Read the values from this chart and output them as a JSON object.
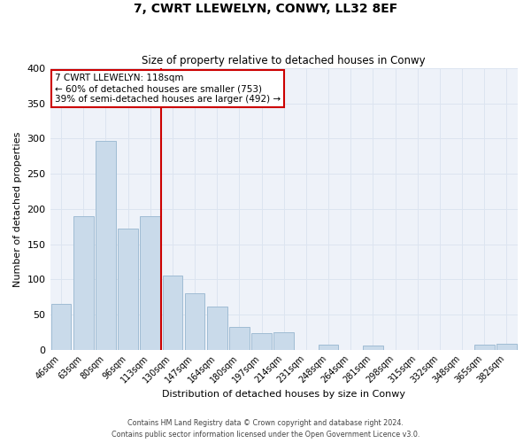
{
  "title": "7, CWRT LLEWELYN, CONWY, LL32 8EF",
  "subtitle": "Size of property relative to detached houses in Conwy",
  "xlabel": "Distribution of detached houses by size in Conwy",
  "ylabel": "Number of detached properties",
  "bar_labels": [
    "46sqm",
    "63sqm",
    "80sqm",
    "96sqm",
    "113sqm",
    "130sqm",
    "147sqm",
    "164sqm",
    "180sqm",
    "197sqm",
    "214sqm",
    "231sqm",
    "248sqm",
    "264sqm",
    "281sqm",
    "298sqm",
    "315sqm",
    "332sqm",
    "348sqm",
    "365sqm",
    "382sqm"
  ],
  "bar_values": [
    65,
    190,
    297,
    172,
    190,
    105,
    80,
    62,
    33,
    23,
    25,
    0,
    7,
    0,
    6,
    0,
    0,
    0,
    0,
    7,
    8
  ],
  "bar_color": "#c9daea",
  "bar_edge_color": "#a0bcd4",
  "property_line_x": 4.5,
  "annotation_title": "7 CWRT LLEWELYN: 118sqm",
  "annotation_line1": "← 60% of detached houses are smaller (753)",
  "annotation_line2": "39% of semi-detached houses are larger (492) →",
  "annotation_box_color": "#ffffff",
  "annotation_box_edge_color": "#cc0000",
  "vline_color": "#cc0000",
  "grid_color": "#dce4f0",
  "background_color": "#eef2f9",
  "ylim": [
    0,
    400
  ],
  "yticks": [
    0,
    50,
    100,
    150,
    200,
    250,
    300,
    350,
    400
  ],
  "footer_line1": "Contains HM Land Registry data © Crown copyright and database right 2024.",
  "footer_line2": "Contains public sector information licensed under the Open Government Licence v3.0."
}
